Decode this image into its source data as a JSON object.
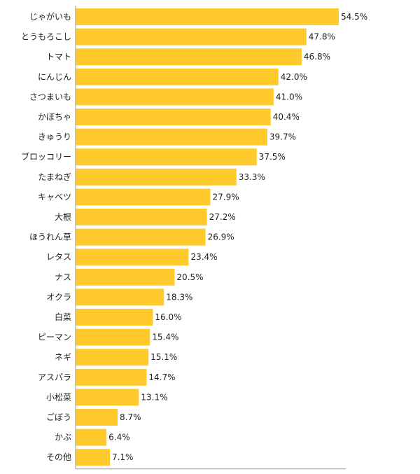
{
  "chart_data": {
    "type": "bar",
    "orientation": "horizontal",
    "categories": [
      "じゃがいも",
      "とうもろこし",
      "トマト",
      "にんじん",
      "さつまいも",
      "かぼちゃ",
      "きゅうり",
      "ブロッコリー",
      "たまねぎ",
      "キャベツ",
      "大根",
      "ほうれん草",
      "レタス",
      "ナス",
      "オクラ",
      "白菜",
      "ピーマン",
      "ネギ",
      "アスパラ",
      "小松菜",
      "ごぼう",
      "かぶ",
      "その他"
    ],
    "values": [
      54.5,
      47.8,
      46.8,
      42.0,
      41.0,
      40.4,
      39.7,
      37.5,
      33.3,
      27.9,
      27.2,
      26.9,
      23.4,
      20.5,
      18.3,
      16.0,
      15.4,
      15.1,
      14.7,
      13.1,
      8.7,
      6.4,
      7.1
    ],
    "value_labels": [
      "54.5%",
      "47.8%",
      "46.8%",
      "42.0%",
      "41.0%",
      "40.4%",
      "39.7%",
      "37.5%",
      "33.3%",
      "27.9%",
      "27.2%",
      "26.9%",
      "23.4%",
      "20.5%",
      "18.3%",
      "16.0%",
      "15.4%",
      "15.1%",
      "14.7%",
      "13.1%",
      "8.7%",
      "6.4%",
      "7.1%"
    ],
    "xlim": [
      0,
      54.5
    ],
    "grid": false,
    "bar_color": "#ffca2b",
    "axis_color": "#999999"
  }
}
